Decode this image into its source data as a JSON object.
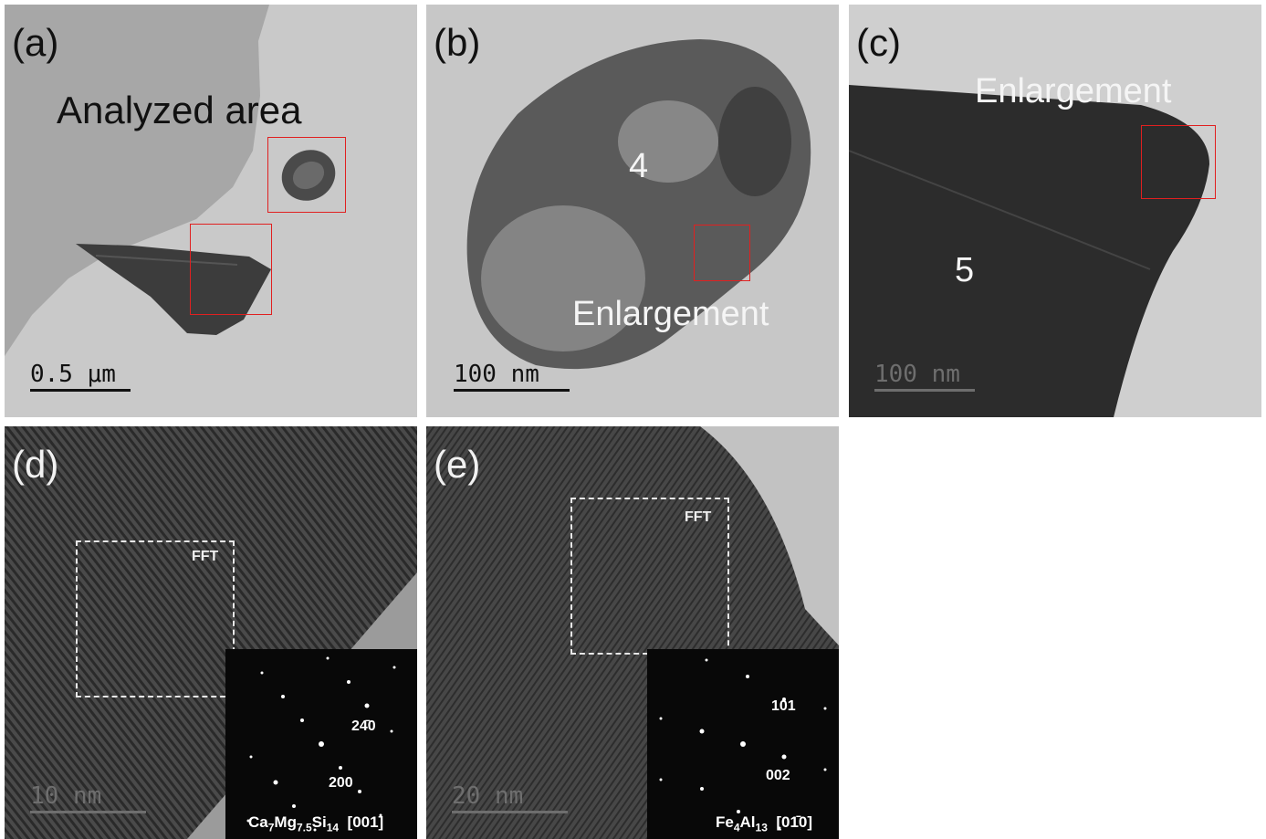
{
  "panels": {
    "a": {
      "label": "(a)",
      "annotation": "Analyzed area",
      "scale_bar": "0.5 μm"
    },
    "b": {
      "label": "(b)",
      "number": "4",
      "annotation": "Enlargement",
      "scale_bar": "100 nm"
    },
    "c": {
      "label": "(c)",
      "number": "5",
      "annotation": "Enlargement",
      "scale_bar": "100 nm"
    },
    "d": {
      "label": "(d)",
      "fft_label": "FFT",
      "scale_bar": "10 nm",
      "spot_labels": [
        "24̄0",
        "200"
      ],
      "phase": {
        "ca": "Ca",
        "ca_sub": "7",
        "mg": "Mg",
        "mg_sub": "7.5",
        "si": "Si",
        "si_sub": "14",
        "zone": "[001]"
      }
    },
    "e": {
      "label": "(e)",
      "fft_label": "FFT",
      "scale_bar": "20 nm",
      "spot_labels": [
        "101",
        "002"
      ],
      "phase": {
        "fe": "Fe",
        "fe_sub": "4",
        "al": "Al",
        "al_sub": "13",
        "zone": "[01̄0]"
      }
    }
  },
  "colors": {
    "box_red": "#e02020",
    "fft_bg": "#080808"
  }
}
